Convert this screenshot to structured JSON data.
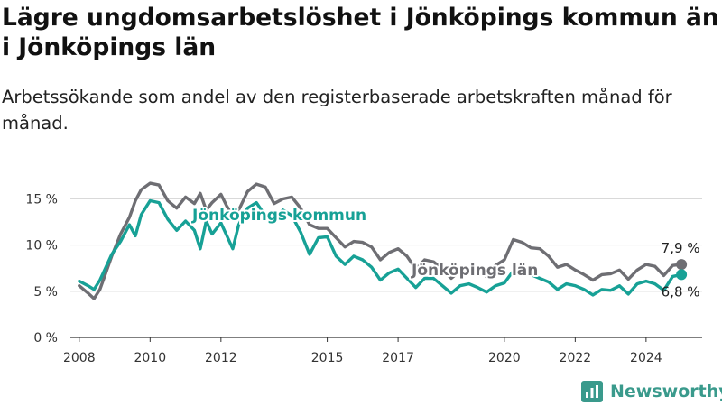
{
  "title": "Lägre ungdomsarbetslöshet i Jönköpings kommun än i Jönköpings län",
  "subtitle": "Arbetssökande som andel av den registerbaserade arbetskraften månad för månad.",
  "logo_text": "Newsworthy",
  "colors": {
    "kommun": "#17a196",
    "lan": "#6e6e73",
    "grid": "#d9d9d9",
    "axis": "#333333"
  },
  "chart_data": {
    "type": "line",
    "title": "Lägre ungdomsarbetslöshet i Jönköpings kommun än i Jönköpings län",
    "subtitle": "Arbetssökande som andel av den registerbaserade arbetskraften månad för månad.",
    "xlabel": "",
    "ylabel": "",
    "x_ticks": [
      "2008",
      "2010",
      "2012",
      "2015",
      "2017",
      "2020",
      "2022",
      "2024"
    ],
    "y_ticks": [
      "0 %",
      "5 %",
      "10 %",
      "15 %"
    ],
    "ylim": [
      0,
      17
    ],
    "grid": "horizontal",
    "series": [
      {
        "name": "Jönköpings län",
        "end_label": "7,9 %",
        "points": [
          [
            "2008-01",
            5.6
          ],
          [
            "2008-04",
            4.8
          ],
          [
            "2008-06",
            4.2
          ],
          [
            "2008-08",
            5.2
          ],
          [
            "2008-10",
            7.0
          ],
          [
            "2008-12",
            8.8
          ],
          [
            "2009-03",
            11.2
          ],
          [
            "2009-06",
            13.0
          ],
          [
            "2009-08",
            14.8
          ],
          [
            "2009-10",
            16.0
          ],
          [
            "2010-01",
            16.7
          ],
          [
            "2010-04",
            16.5
          ],
          [
            "2010-07",
            14.8
          ],
          [
            "2010-10",
            14.0
          ],
          [
            "2011-01",
            15.2
          ],
          [
            "2011-04",
            14.5
          ],
          [
            "2011-06",
            15.6
          ],
          [
            "2011-08",
            13.8
          ],
          [
            "2011-10",
            14.6
          ],
          [
            "2012-01",
            15.5
          ],
          [
            "2012-03",
            14.2
          ],
          [
            "2012-05",
            13.2
          ],
          [
            "2012-07",
            13.8
          ],
          [
            "2012-10",
            15.8
          ],
          [
            "2013-01",
            16.6
          ],
          [
            "2013-04",
            16.3
          ],
          [
            "2013-07",
            14.5
          ],
          [
            "2013-10",
            15.0
          ],
          [
            "2014-01",
            15.2
          ],
          [
            "2014-04",
            14.0
          ],
          [
            "2014-07",
            12.2
          ],
          [
            "2014-10",
            11.8
          ],
          [
            "2015-01",
            11.8
          ],
          [
            "2015-04",
            10.8
          ],
          [
            "2015-07",
            9.8
          ],
          [
            "2015-10",
            10.4
          ],
          [
            "2016-01",
            10.3
          ],
          [
            "2016-04",
            9.8
          ],
          [
            "2016-07",
            8.4
          ],
          [
            "2016-10",
            9.2
          ],
          [
            "2017-01",
            9.6
          ],
          [
            "2017-04",
            8.8
          ],
          [
            "2017-07",
            7.4
          ],
          [
            "2017-10",
            8.4
          ],
          [
            "2018-01",
            8.2
          ],
          [
            "2018-04",
            7.4
          ],
          [
            "2018-07",
            6.4
          ],
          [
            "2018-10",
            7.2
          ],
          [
            "2019-01",
            7.4
          ],
          [
            "2019-04",
            7.2
          ],
          [
            "2019-07",
            6.6
          ],
          [
            "2019-10",
            7.8
          ],
          [
            "2020-01",
            8.4
          ],
          [
            "2020-04",
            10.6
          ],
          [
            "2020-07",
            10.3
          ],
          [
            "2020-10",
            9.7
          ],
          [
            "2021-01",
            9.6
          ],
          [
            "2021-04",
            8.8
          ],
          [
            "2021-07",
            7.6
          ],
          [
            "2021-10",
            7.9
          ],
          [
            "2022-01",
            7.3
          ],
          [
            "2022-04",
            6.8
          ],
          [
            "2022-07",
            6.2
          ],
          [
            "2022-10",
            6.8
          ],
          [
            "2023-01",
            6.9
          ],
          [
            "2023-04",
            7.3
          ],
          [
            "2023-07",
            6.3
          ],
          [
            "2023-10",
            7.3
          ],
          [
            "2024-01",
            7.9
          ],
          [
            "2024-04",
            7.7
          ],
          [
            "2024-07",
            6.7
          ],
          [
            "2024-10",
            7.8
          ],
          [
            "2025-01",
            7.9
          ]
        ]
      },
      {
        "name": "Jönköpings kommun",
        "end_label": "6,8 %",
        "points": [
          [
            "2008-01",
            6.1
          ],
          [
            "2008-04",
            5.6
          ],
          [
            "2008-06",
            5.2
          ],
          [
            "2008-08",
            6.2
          ],
          [
            "2008-10",
            7.6
          ],
          [
            "2008-12",
            9.0
          ],
          [
            "2009-03",
            10.4
          ],
          [
            "2009-06",
            12.2
          ],
          [
            "2009-08",
            11.0
          ],
          [
            "2009-10",
            13.3
          ],
          [
            "2010-01",
            14.8
          ],
          [
            "2010-04",
            14.6
          ],
          [
            "2010-07",
            12.8
          ],
          [
            "2010-10",
            11.6
          ],
          [
            "2011-01",
            12.6
          ],
          [
            "2011-04",
            11.6
          ],
          [
            "2011-06",
            9.6
          ],
          [
            "2011-08",
            12.6
          ],
          [
            "2011-10",
            11.2
          ],
          [
            "2012-01",
            12.4
          ],
          [
            "2012-03",
            11.0
          ],
          [
            "2012-05",
            9.6
          ],
          [
            "2012-07",
            12.2
          ],
          [
            "2012-10",
            14.0
          ],
          [
            "2013-01",
            14.6
          ],
          [
            "2013-04",
            13.2
          ],
          [
            "2013-07",
            12.8
          ],
          [
            "2013-10",
            13.8
          ],
          [
            "2014-01",
            13.2
          ],
          [
            "2014-04",
            11.4
          ],
          [
            "2014-07",
            9.0
          ],
          [
            "2014-10",
            10.8
          ],
          [
            "2015-01",
            10.9
          ],
          [
            "2015-04",
            8.8
          ],
          [
            "2015-07",
            7.9
          ],
          [
            "2015-10",
            8.8
          ],
          [
            "2016-01",
            8.4
          ],
          [
            "2016-04",
            7.6
          ],
          [
            "2016-07",
            6.2
          ],
          [
            "2016-10",
            7.0
          ],
          [
            "2017-01",
            7.4
          ],
          [
            "2017-04",
            6.4
          ],
          [
            "2017-07",
            5.4
          ],
          [
            "2017-10",
            6.4
          ],
          [
            "2018-01",
            6.4
          ],
          [
            "2018-04",
            5.6
          ],
          [
            "2018-07",
            4.8
          ],
          [
            "2018-10",
            5.6
          ],
          [
            "2019-01",
            5.8
          ],
          [
            "2019-04",
            5.4
          ],
          [
            "2019-07",
            4.9
          ],
          [
            "2019-10",
            5.6
          ],
          [
            "2020-01",
            5.9
          ],
          [
            "2020-04",
            7.2
          ],
          [
            "2020-07",
            7.0
          ],
          [
            "2020-10",
            6.8
          ],
          [
            "2021-01",
            6.4
          ],
          [
            "2021-04",
            6.0
          ],
          [
            "2021-07",
            5.2
          ],
          [
            "2021-10",
            5.8
          ],
          [
            "2022-01",
            5.6
          ],
          [
            "2022-04",
            5.2
          ],
          [
            "2022-07",
            4.6
          ],
          [
            "2022-10",
            5.2
          ],
          [
            "2023-01",
            5.1
          ],
          [
            "2023-04",
            5.6
          ],
          [
            "2023-07",
            4.7
          ],
          [
            "2023-10",
            5.8
          ],
          [
            "2024-01",
            6.1
          ],
          [
            "2024-04",
            5.8
          ],
          [
            "2024-07",
            5.1
          ],
          [
            "2024-10",
            6.6
          ],
          [
            "2025-01",
            6.8
          ]
        ]
      }
    ]
  }
}
